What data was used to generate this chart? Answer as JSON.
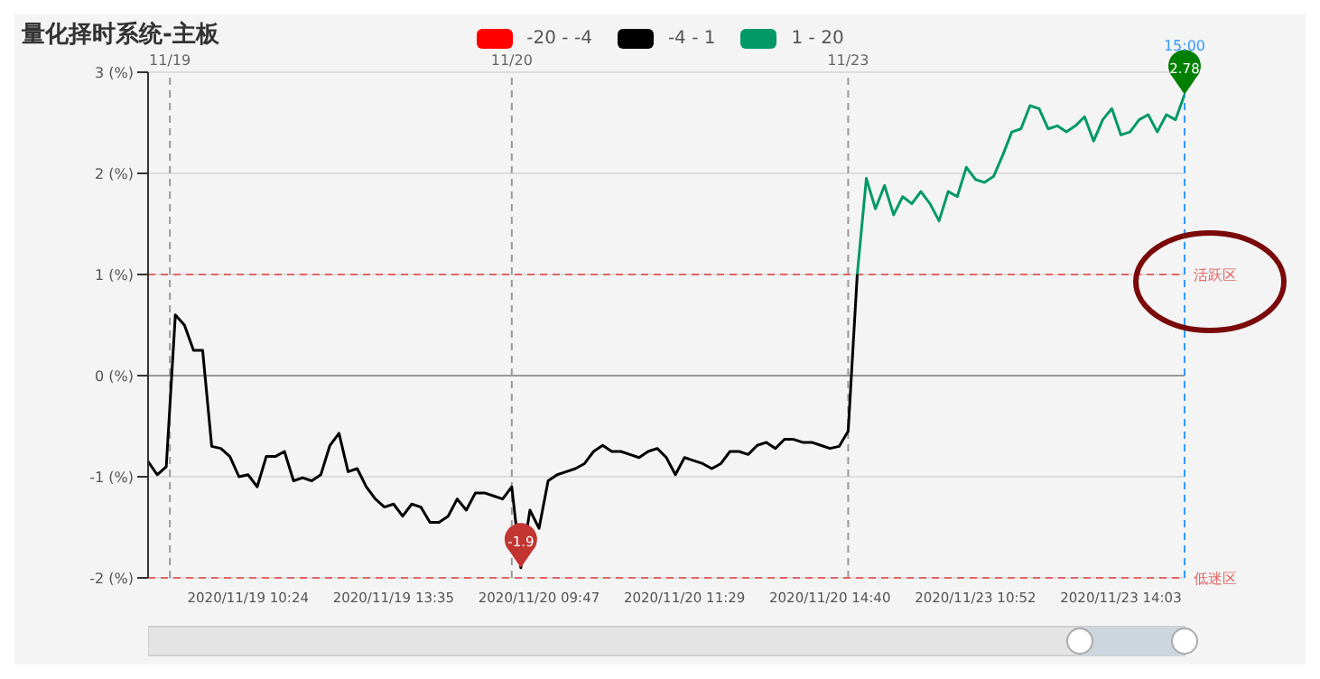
{
  "chart_data": {
    "type": "line",
    "title": "量化择时系统-主板",
    "categories": [
      null,
      null,
      null,
      null,
      null,
      null,
      null,
      null,
      null,
      null,
      null,
      "2020/11/19 10:24",
      null,
      null,
      null,
      null,
      null,
      null,
      null,
      null,
      null,
      null,
      null,
      null,
      null,
      null,
      null,
      "2020/11/19 13:35",
      null,
      null,
      null,
      null,
      null,
      null,
      null,
      null,
      null,
      null,
      null,
      null,
      null,
      null,
      null,
      "2020/11/20 09:47",
      null,
      null,
      null,
      null,
      null,
      null,
      null,
      null,
      null,
      null,
      null,
      null,
      null,
      null,
      null,
      "2020/11/20 11:29",
      null,
      null,
      null,
      null,
      null,
      null,
      null,
      null,
      null,
      null,
      null,
      null,
      null,
      null,
      null,
      "2020/11/20 14:40",
      null,
      null,
      null,
      null,
      null,
      null,
      null,
      null,
      null,
      null,
      null,
      null,
      null,
      null,
      null,
      "2020/11/23 10:52",
      null,
      null,
      null,
      null,
      null,
      null,
      null,
      null,
      null,
      null,
      null,
      null,
      null,
      null,
      null,
      "2020/11/23 14:03",
      null,
      null,
      null,
      null,
      null,
      null,
      null
    ],
    "series": [
      {
        "name": "-20 - -4",
        "color": "#ff0000",
        "values": [
          null,
          null,
          null,
          null,
          null,
          null,
          null,
          null,
          null,
          null,
          null,
          null,
          null,
          null,
          null,
          null,
          null,
          null,
          null,
          null,
          null,
          null,
          null,
          null,
          null,
          null,
          null,
          null,
          null,
          null,
          null,
          null,
          null,
          null,
          null,
          null,
          null,
          null,
          null,
          null,
          null,
          null,
          null,
          null,
          null,
          null,
          null,
          null,
          null,
          null,
          null,
          null,
          null,
          null,
          null,
          null,
          null,
          null,
          null,
          null,
          null,
          null,
          null,
          null,
          null,
          null,
          null,
          null,
          null,
          null,
          null,
          null,
          null,
          null,
          null,
          null,
          null,
          null,
          null,
          null,
          null,
          null,
          null,
          null,
          null,
          null,
          null,
          null,
          null,
          null,
          null,
          null,
          null,
          null,
          null,
          null,
          null,
          null,
          null,
          null,
          null,
          null,
          null,
          null,
          null,
          null,
          null,
          null,
          null,
          null,
          null,
          null,
          null,
          null,
          null
        ]
      },
      {
        "name": "-4 - 1",
        "color": "#000000",
        "values": [
          -0.85,
          -0.98,
          -0.9,
          0.6,
          0.5,
          0.25,
          0.25,
          -0.7,
          -0.72,
          -0.8,
          -1.0,
          -0.98,
          -1.1,
          -0.8,
          -0.8,
          -0.75,
          -1.04,
          -1.01,
          -1.04,
          -0.98,
          -0.69,
          -0.57,
          -0.95,
          -0.92,
          -1.1,
          -1.22,
          -1.3,
          -1.27,
          -1.39,
          -1.27,
          -1.3,
          -1.45,
          -1.45,
          -1.39,
          -1.22,
          -1.33,
          -1.16,
          -1.16,
          -1.19,
          -1.22,
          -1.1,
          -1.9,
          -1.33,
          -1.51,
          -1.04,
          -0.98,
          -0.95,
          -0.92,
          -0.87,
          -0.75,
          -0.69,
          -0.75,
          -0.75,
          -0.78,
          -0.81,
          -0.75,
          -0.72,
          -0.81,
          -0.98,
          -0.81,
          -0.84,
          -0.87,
          -0.92,
          -0.87,
          -0.75,
          -0.75,
          -0.78,
          -0.69,
          -0.66,
          -0.72,
          -0.63,
          -0.63,
          -0.66,
          -0.66,
          -0.69,
          -0.72,
          -0.7,
          -0.55,
          1.0,
          null,
          null,
          null,
          null,
          null,
          null,
          null,
          null,
          null,
          null,
          null,
          null,
          null,
          null,
          null,
          null,
          null,
          null,
          null,
          null,
          null,
          null,
          null,
          null,
          null,
          null,
          null,
          null,
          null,
          null,
          null,
          null,
          null,
          null,
          null,
          null
        ]
      },
      {
        "name": "1 - 20",
        "color": "#009966",
        "values": [
          null,
          null,
          null,
          null,
          null,
          null,
          null,
          null,
          null,
          null,
          null,
          null,
          null,
          null,
          null,
          null,
          null,
          null,
          null,
          null,
          null,
          null,
          null,
          null,
          null,
          null,
          null,
          null,
          null,
          null,
          null,
          null,
          null,
          null,
          null,
          null,
          null,
          null,
          null,
          null,
          null,
          null,
          null,
          null,
          null,
          null,
          null,
          null,
          null,
          null,
          null,
          null,
          null,
          null,
          null,
          null,
          null,
          null,
          null,
          null,
          null,
          null,
          null,
          null,
          null,
          null,
          null,
          null,
          null,
          null,
          null,
          null,
          null,
          null,
          null,
          null,
          null,
          null,
          1.0,
          1.95,
          1.65,
          1.88,
          1.59,
          1.77,
          1.7,
          1.82,
          1.7,
          1.53,
          1.82,
          1.77,
          2.06,
          1.94,
          1.91,
          1.97,
          2.18,
          2.41,
          2.44,
          2.67,
          2.64,
          2.44,
          2.47,
          2.41,
          2.47,
          2.56,
          2.32,
          2.53,
          2.64,
          2.38,
          2.41,
          2.53,
          2.58,
          2.41,
          2.58,
          2.53,
          2.78
        ]
      }
    ],
    "ylim": [
      -2,
      3
    ],
    "yticks": [
      {
        "value": -2,
        "label": "-2 (%)"
      },
      {
        "value": -1,
        "label": "-1 (%)"
      },
      {
        "value": 0,
        "label": "0 (%)"
      },
      {
        "value": 1,
        "label": "1 (%)"
      },
      {
        "value": 2,
        "label": "2 (%)"
      },
      {
        "value": 3,
        "label": "3 (%)"
      }
    ],
    "grid": "y",
    "legend": "top",
    "marker": "none",
    "line_style": "solid",
    "ref_lines": [
      {
        "axis": "y",
        "value": 1,
        "label": "活跃区",
        "color": "#e06666",
        "line_style": "dashed"
      },
      {
        "axis": "y",
        "value": -2,
        "label": "低迷区",
        "color": "#e06666",
        "line_style": "dashed"
      }
    ],
    "annotations": [
      "11/19",
      "11/20",
      "11/23",
      "15:00",
      {
        "text": "-1.9",
        "y": -1.9
      },
      {
        "text": "2.78",
        "y": 2.78
      }
    ]
  }
}
